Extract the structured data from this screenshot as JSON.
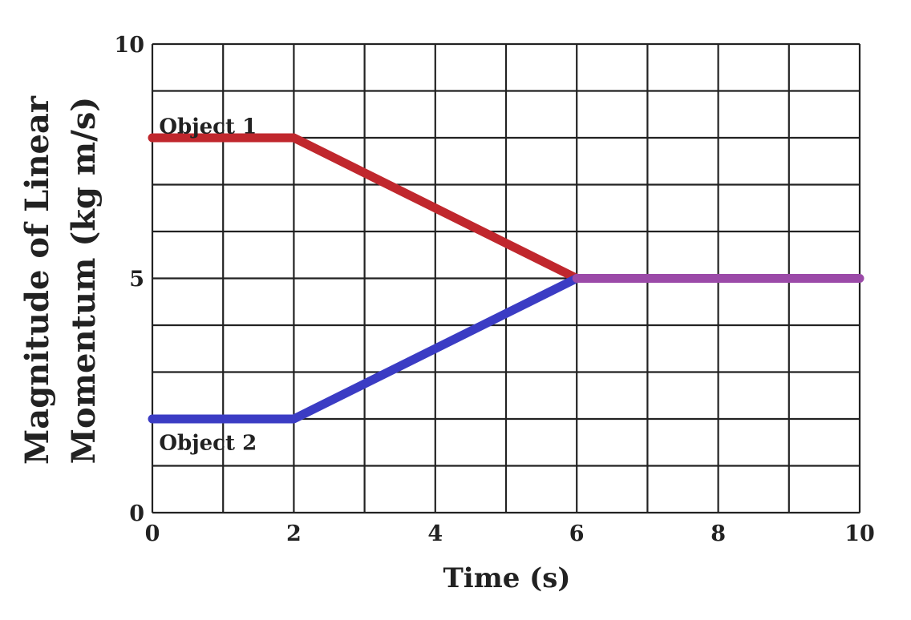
{
  "chart_data": {
    "type": "line",
    "xlabel": "Time (s)",
    "ylabel_lines": [
      "Magnitude of Linear",
      "Momentum (kg m/s)"
    ],
    "xlim": [
      0,
      10
    ],
    "ylim": [
      0,
      10
    ],
    "x_ticks": [
      0,
      2,
      4,
      6,
      8,
      10
    ],
    "y_ticks": [
      0,
      5,
      10
    ],
    "x_grid_step": 1,
    "y_grid_step": 1,
    "grid": true,
    "series": [
      {
        "name": "Object 1",
        "color": "#c0272d",
        "points": [
          [
            0,
            8
          ],
          [
            2,
            8
          ],
          [
            6,
            5
          ]
        ]
      },
      {
        "name": "Object 2",
        "color": "#3b3cc4",
        "points": [
          [
            0,
            2
          ],
          [
            2,
            2
          ],
          [
            6,
            5
          ]
        ]
      },
      {
        "name": "",
        "color": "#9b4aa8",
        "points": [
          [
            6,
            5
          ],
          [
            10,
            5
          ]
        ]
      }
    ],
    "annotations": [
      {
        "text": "Object 1",
        "x": 0.05,
        "y": 8.25
      },
      {
        "text": "Object 2",
        "x": 0.05,
        "y": 1.5
      }
    ]
  }
}
